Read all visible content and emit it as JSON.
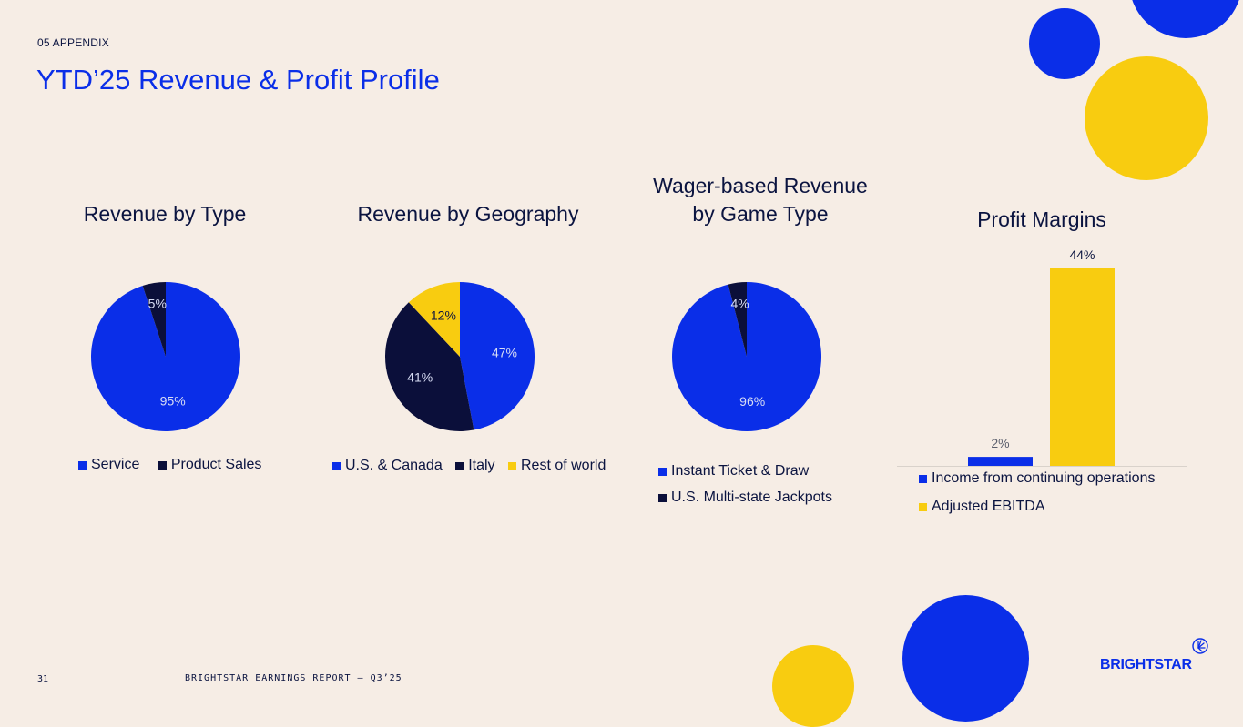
{
  "header": {
    "section": "05 APPENDIX",
    "title": "YTD’25 Revenue & Profit Profile"
  },
  "footer": {
    "page_number": "31",
    "report_name": "BRIGHTSTAR EARNINGS REPORT – Q3’25",
    "brand": "BRIGHTSTAR"
  },
  "colors": {
    "blue": "#0a2ee8",
    "navy": "#0b0f3a",
    "yellow": "#f8cc10",
    "background": "#f6ede5"
  },
  "chart_data": [
    {
      "type": "pie",
      "title": "Revenue by Type",
      "categories": [
        "Service",
        "Product Sales"
      ],
      "values": [
        95,
        5
      ],
      "labels": [
        "95%",
        "5%"
      ],
      "colors": [
        "#0a2ee8",
        "#0b0f3a"
      ],
      "legend": "bottom"
    },
    {
      "type": "pie",
      "title": "Revenue by Geography",
      "categories": [
        "U.S. & Canada",
        "Italy",
        "Rest of world"
      ],
      "values": [
        47,
        41,
        12
      ],
      "labels": [
        "47%",
        "41%",
        "12%"
      ],
      "colors": [
        "#0a2ee8",
        "#0b0f3a",
        "#f8cc10"
      ],
      "legend": "bottom"
    },
    {
      "type": "pie",
      "title_lines": [
        "Wager-based Revenue",
        "by Game Type"
      ],
      "categories": [
        "Instant Ticket & Draw",
        "U.S. Multi-state Jackpots"
      ],
      "values": [
        96,
        4
      ],
      "labels": [
        "96%",
        "4%"
      ],
      "colors": [
        "#0a2ee8",
        "#0b0f3a"
      ],
      "legend": "bottom"
    },
    {
      "type": "bar",
      "title": "Profit Margins",
      "categories": [
        "Income from continuing operations",
        "Adjusted EBITDA"
      ],
      "values": [
        2,
        44
      ],
      "labels": [
        "2%",
        "44%"
      ],
      "colors": [
        "#0a2ee8",
        "#f8cc10"
      ],
      "ylim": [
        0,
        44
      ],
      "legend": "bottom"
    }
  ]
}
